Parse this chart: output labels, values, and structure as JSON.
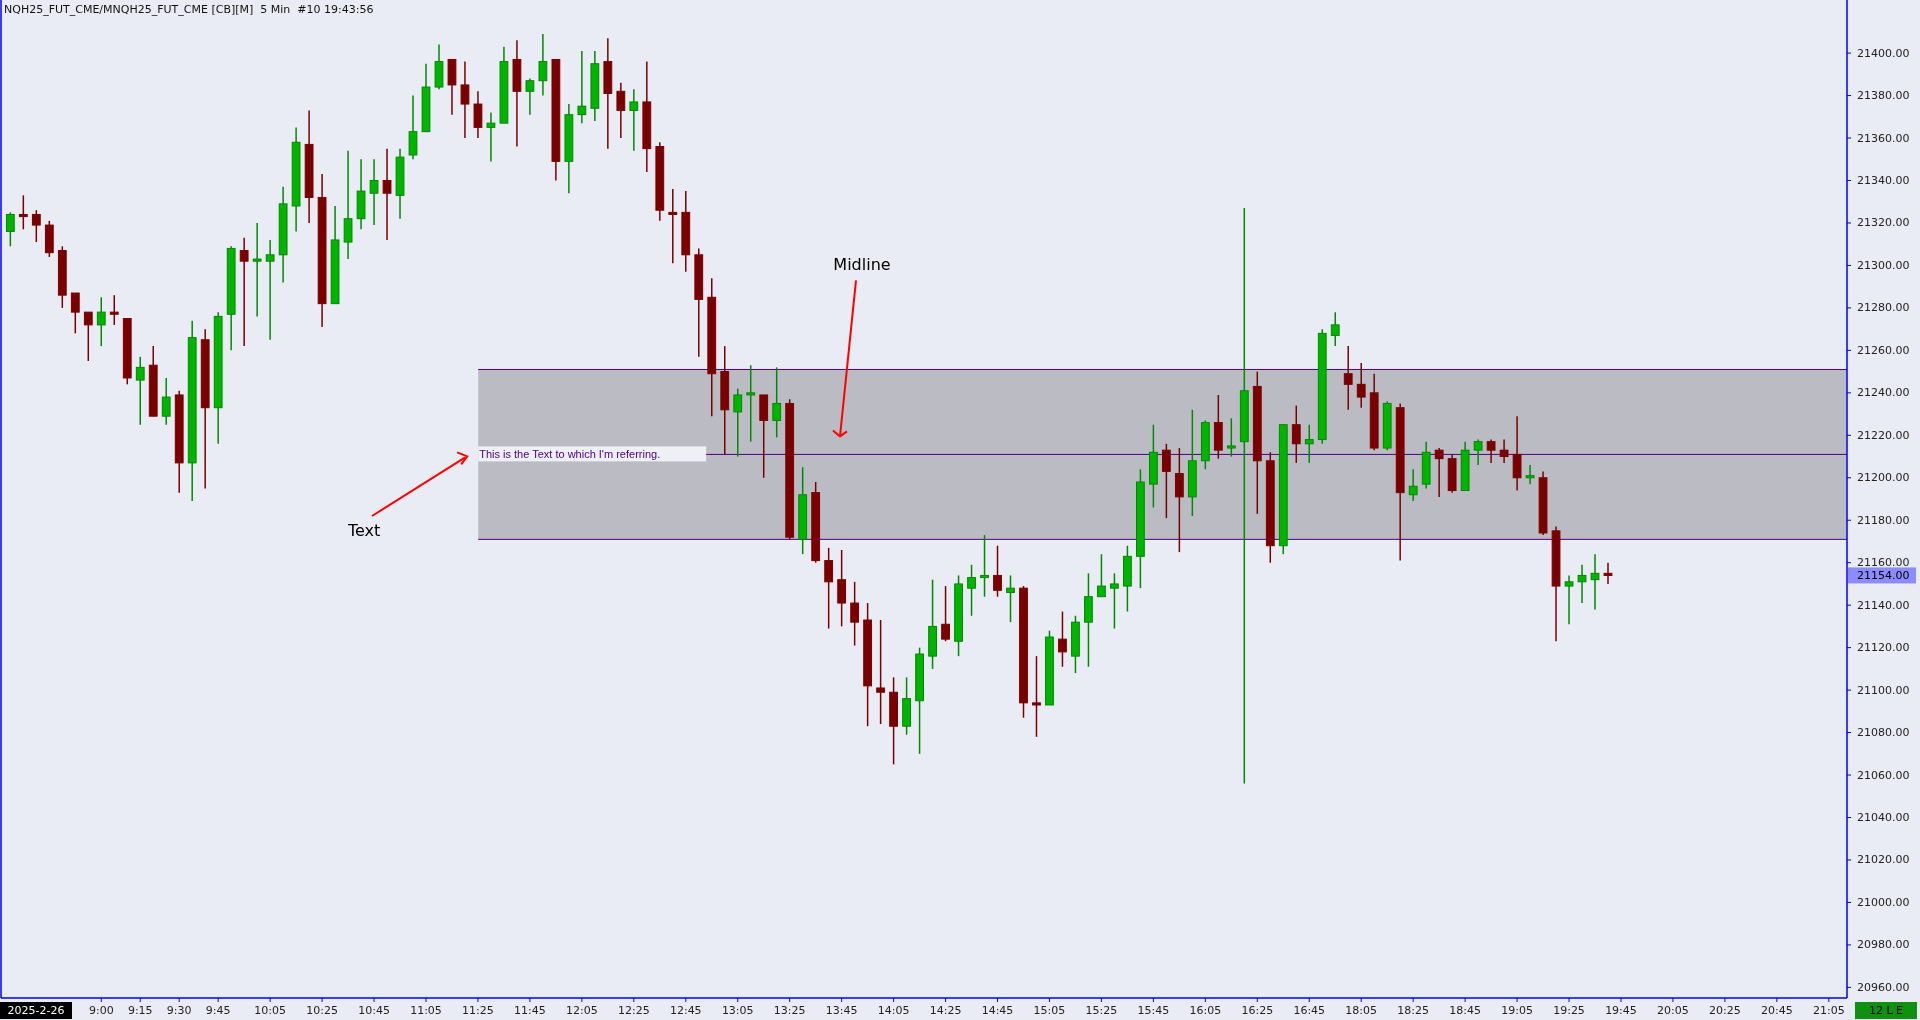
{
  "chart_data": {
    "type": "candlestick",
    "title": "NQH25_FUT_CME/MNQH25_FUT_CME [CB][M]  5 Min  #10 19:43:56",
    "categories": [
      null,
      null,
      null,
      null,
      null,
      null,
      null,
      "9:00",
      null,
      null,
      "9:15",
      null,
      null,
      "9:30",
      null,
      null,
      "9:45",
      null,
      null,
      null,
      "10:05",
      null,
      null,
      null,
      "10:25",
      null,
      null,
      null,
      "10:45",
      null,
      null,
      null,
      "11:05",
      null,
      null,
      null,
      "11:25",
      null,
      null,
      null,
      "11:45",
      null,
      null,
      null,
      "12:05",
      null,
      null,
      null,
      "12:25",
      null,
      null,
      null,
      "12:45",
      null,
      null,
      null,
      "13:05",
      null,
      null,
      null,
      "13:25",
      null,
      null,
      null,
      "13:45",
      null,
      null,
      null,
      "14:05",
      null,
      null,
      null,
      "14:25",
      null,
      null,
      null,
      "14:45",
      null,
      null,
      null,
      "15:05",
      null,
      null,
      null,
      "15:25",
      null,
      null,
      null,
      "15:45",
      null,
      null,
      null,
      "16:05",
      null,
      null,
      null,
      "16:25",
      null,
      null,
      null,
      "16:45",
      null,
      null,
      null,
      "18:05",
      null,
      null,
      null,
      "18:25",
      null,
      null,
      null,
      "18:45",
      null,
      null,
      null,
      "19:05",
      null,
      null,
      null,
      "19:25",
      null,
      null,
      null,
      "19:45",
      null,
      null,
      null,
      "20:05",
      null,
      null,
      null,
      "20:25",
      null,
      null,
      null,
      "20:45",
      null,
      null,
      null,
      "21:05",
      null
    ],
    "ohlc": [
      [
        21316,
        21325,
        21309,
        21324
      ],
      [
        21324,
        21333,
        21317,
        21323
      ],
      [
        21324,
        21326,
        21311,
        21319
      ],
      [
        21319,
        21321,
        21304,
        21306
      ],
      [
        21307,
        21309,
        21280,
        21286
      ],
      [
        21287,
        21287,
        21268,
        21278
      ],
      [
        21278,
        21278,
        21255,
        21272
      ],
      [
        21272,
        21285,
        21262,
        21278
      ],
      [
        21278,
        21286,
        21272,
        21277
      ],
      [
        21275,
        21275,
        21244,
        21247
      ],
      [
        21246,
        21257,
        21225,
        21252
      ],
      [
        21253,
        21262,
        21229,
        21229
      ],
      [
        21229,
        21247,
        21225,
        21238
      ],
      [
        21239,
        21241,
        21193,
        21207
      ],
      [
        21207,
        21274,
        21189,
        21266
      ],
      [
        21265,
        21270,
        21195,
        21233
      ],
      [
        21233,
        21278,
        21216,
        21276
      ],
      [
        21277,
        21309,
        21260,
        21308
      ],
      [
        21307,
        21313,
        21262,
        21302
      ],
      [
        21302,
        21320,
        21276,
        21303
      ],
      [
        21302,
        21312,
        21265,
        21305
      ],
      [
        21305,
        21337,
        21292,
        21329
      ],
      [
        21328,
        21365,
        21316,
        21358
      ],
      [
        21357,
        21373,
        21320,
        21332
      ],
      [
        21332,
        21343,
        21271,
        21282
      ],
      [
        21282,
        21328,
        21282,
        21312
      ],
      [
        21311,
        21354,
        21303,
        21322
      ],
      [
        21322,
        21350,
        21317,
        21335
      ],
      [
        21334,
        21350,
        21319,
        21340
      ],
      [
        21340,
        21355,
        21312,
        21334
      ],
      [
        21333,
        21355,
        21322,
        21351
      ],
      [
        21352,
        21380,
        21350,
        21363
      ],
      [
        21363,
        21395,
        21363,
        21384
      ],
      [
        21384,
        21404,
        21383,
        21396
      ],
      [
        21397,
        21397,
        21371,
        21385
      ],
      [
        21385,
        21396,
        21360,
        21376
      ],
      [
        21376,
        21382,
        21360,
        21365
      ],
      [
        21365,
        21372,
        21349,
        21367
      ],
      [
        21367,
        21403,
        21367,
        21396
      ],
      [
        21397,
        21406,
        21356,
        21382
      ],
      [
        21382,
        21388,
        21371,
        21387
      ],
      [
        21387,
        21409,
        21380,
        21396
      ],
      [
        21397,
        21397,
        21340,
        21349
      ],
      [
        21349,
        21376,
        21334,
        21371
      ],
      [
        21371,
        21401,
        21367,
        21375
      ],
      [
        21374,
        21401,
        21368,
        21395
      ],
      [
        21396,
        21407,
        21355,
        21381
      ],
      [
        21382,
        21386,
        21360,
        21373
      ],
      [
        21373,
        21383,
        21354,
        21377
      ],
      [
        21377,
        21396,
        21344,
        21355
      ],
      [
        21356,
        21358,
        21321,
        21326
      ],
      [
        21325,
        21336,
        21301,
        21324
      ],
      [
        21325,
        21335,
        21297,
        21305
      ],
      [
        21305,
        21308,
        21257,
        21284
      ],
      [
        21285,
        21294,
        21229,
        21249
      ],
      [
        21250,
        21262,
        21211,
        21232
      ],
      [
        21231,
        21242,
        21210,
        21239
      ],
      [
        21239,
        21253,
        21217,
        21240
      ],
      [
        21239,
        21239,
        21200,
        21227
      ],
      [
        21227,
        21252,
        21219,
        21235
      ],
      [
        21235,
        21237,
        21171,
        21172
      ],
      [
        21171,
        21205,
        21164,
        21192
      ],
      [
        21193,
        21198,
        21160,
        21161
      ],
      [
        21161,
        21167,
        21129,
        21151
      ],
      [
        21152,
        21166,
        21130,
        21141
      ],
      [
        21141,
        21151,
        21121,
        21132
      ],
      [
        21133,
        21141,
        21083,
        21102
      ],
      [
        21101,
        21133,
        21084,
        21099
      ],
      [
        21099,
        21106,
        21065,
        21083
      ],
      [
        21083,
        21106,
        21079,
        21096
      ],
      [
        21095,
        21120,
        21070,
        21117
      ],
      [
        21116,
        21152,
        21110,
        21130
      ],
      [
        21131,
        21149,
        21123,
        21124
      ],
      [
        21123,
        21154,
        21116,
        21150
      ],
      [
        21148,
        21159,
        21135,
        21153
      ],
      [
        21153,
        21173,
        21144,
        21154
      ],
      [
        21154,
        21168,
        21144,
        21147
      ],
      [
        21146,
        21154,
        21132,
        21148
      ],
      [
        21148,
        21149,
        21087,
        21094
      ],
      [
        21094,
        21116,
        21078,
        21093
      ],
      [
        21093,
        21128,
        21093,
        21125
      ],
      [
        21124,
        21137,
        21111,
        21118
      ],
      [
        21116,
        21135,
        21108,
        21132
      ],
      [
        21132,
        21155,
        21111,
        21144
      ],
      [
        21144,
        21164,
        21144,
        21149
      ],
      [
        21148,
        21155,
        21129,
        21150
      ],
      [
        21149,
        21168,
        21137,
        21163
      ],
      [
        21163,
        21204,
        21148,
        21198
      ],
      [
        21197,
        21225,
        21186,
        21212
      ],
      [
        21213,
        21216,
        21181,
        21203
      ],
      [
        21202,
        21214,
        21165,
        21191
      ],
      [
        21191,
        21232,
        21182,
        21208
      ],
      [
        21208,
        21227,
        21204,
        21226
      ],
      [
        21226,
        21239,
        21209,
        21213
      ],
      [
        21214,
        21228,
        21210,
        21215
      ],
      [
        21217,
        21327,
        21056,
        21241
      ],
      [
        21243,
        21250,
        21183,
        21208
      ],
      [
        21208,
        21212,
        21160,
        21168
      ],
      [
        21168,
        21225,
        21164,
        21225
      ],
      [
        21225,
        21234,
        21207,
        21216
      ],
      [
        21216,
        21225,
        21207,
        21218
      ],
      [
        21218,
        21270,
        21216,
        21268
      ],
      [
        21267,
        21278,
        21262,
        21272
      ],
      [
        21249,
        21262,
        21232,
        21244
      ],
      [
        21244,
        21254,
        21233,
        21238
      ],
      [
        21240,
        21249,
        21213,
        21214
      ],
      [
        21214,
        21236,
        21213,
        21235
      ],
      [
        21233,
        21235,
        21161,
        21193
      ],
      [
        21192,
        21204,
        21189,
        21196
      ],
      [
        21197,
        21217,
        21195,
        21212
      ],
      [
        21213,
        21214,
        21191,
        21209
      ],
      [
        21209,
        21211,
        21193,
        21194
      ],
      [
        21194,
        21217,
        21194,
        21213
      ],
      [
        21213,
        21218,
        21206,
        21217
      ],
      [
        21217,
        21218,
        21207,
        21213
      ],
      [
        21213,
        21218,
        21207,
        21210
      ],
      [
        21211,
        21229,
        21194,
        21200
      ],
      [
        21200,
        21206,
        21197,
        21201
      ],
      [
        21200,
        21203,
        21173,
        21174
      ],
      [
        21175,
        21177,
        21123,
        21149
      ],
      [
        21149,
        21154,
        21131,
        21151
      ],
      [
        21151,
        21159,
        21141,
        21154
      ],
      [
        21152,
        21164,
        21138,
        21155
      ],
      [
        21155,
        21160,
        21150,
        21154
      ],
      null,
      null,
      null,
      null,
      null,
      null,
      null,
      null,
      null,
      null,
      null,
      null,
      null,
      null,
      null,
      null,
      null,
      null
    ],
    "ylim": [
      20955,
      21425
    ],
    "yticks": [
      {
        "value": 20960,
        "label": "20960.00"
      },
      {
        "value": 20980,
        "label": "20980.00"
      },
      {
        "value": 21000,
        "label": "21000.00"
      },
      {
        "value": 21020,
        "label": "21020.00"
      },
      {
        "value": 21040,
        "label": "21040.00"
      },
      {
        "value": 21060,
        "label": "21060.00"
      },
      {
        "value": 21080,
        "label": "21080.00"
      },
      {
        "value": 21100,
        "label": "21100.00"
      },
      {
        "value": 21120,
        "label": "21120.00"
      },
      {
        "value": 21140,
        "label": "21140.00"
      },
      {
        "value": 21160,
        "label": "21160.00"
      },
      {
        "value": 21180,
        "label": "21180.00"
      },
      {
        "value": 21200,
        "label": "21200.00"
      },
      {
        "value": 21220,
        "label": "21220.00"
      },
      {
        "value": 21240,
        "label": "21240.00"
      },
      {
        "value": 21260,
        "label": "21260.00"
      },
      {
        "value": 21280,
        "label": "21280.00"
      },
      {
        "value": 21300,
        "label": "21300.00"
      },
      {
        "value": 21320,
        "label": "21320.00"
      },
      {
        "value": 21340,
        "label": "21340.00"
      },
      {
        "value": 21360,
        "label": "21360.00"
      },
      {
        "value": 21380,
        "label": "21380.00"
      },
      {
        "value": 21400,
        "label": "21400.00"
      }
    ],
    "bands": [
      {
        "axis": "y",
        "from": 21171,
        "to": 21251,
        "color": "#bbbcc3"
      }
    ],
    "ref_lines": [
      {
        "axis": "y",
        "value": 21211,
        "label": "This is the Text to which I'm referring.",
        "color": "#4b0082"
      },
      {
        "axis": "y",
        "value": 21251,
        "color": "#4b0082"
      },
      {
        "axis": "y",
        "value": 21171,
        "color": "#4b0082"
      }
    ],
    "annotations": [
      "2025-2-26",
      "21154.00",
      "12 L E",
      "Midline",
      "Text"
    ]
  }
}
